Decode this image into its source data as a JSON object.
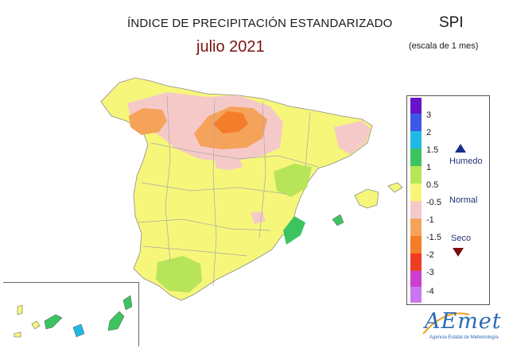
{
  "header": {
    "title": "ÍNDICE DE PRECIPITACIÓN ESTANDARIZADO",
    "period": "julio 2021",
    "index_name": "SPI",
    "scale_note": "(escala de 1 mes)"
  },
  "legend": {
    "ticks": [
      "3",
      "2",
      "1.5",
      "1",
      "0.5",
      "-0.5",
      "-1",
      "-1.5",
      "-2",
      "-3",
      "-4"
    ],
    "categories": {
      "wet": "Humedo",
      "normal": "Normal",
      "dry": "Seco"
    },
    "colors": [
      "#6a12c9",
      "#3d57e6",
      "#1fb9e6",
      "#3cc460",
      "#b8e45a",
      "#f6f67a",
      "#f6c9c9",
      "#f5a35a",
      "#f47d2a",
      "#ee3d24",
      "#cc3fd0",
      "#c977f0"
    ],
    "wet_marker_color": "#152e8c",
    "dry_marker_color": "#7a0d0d"
  },
  "logo": {
    "name": "AEmet",
    "agency": "Agencia Estatal de Meteorología"
  }
}
